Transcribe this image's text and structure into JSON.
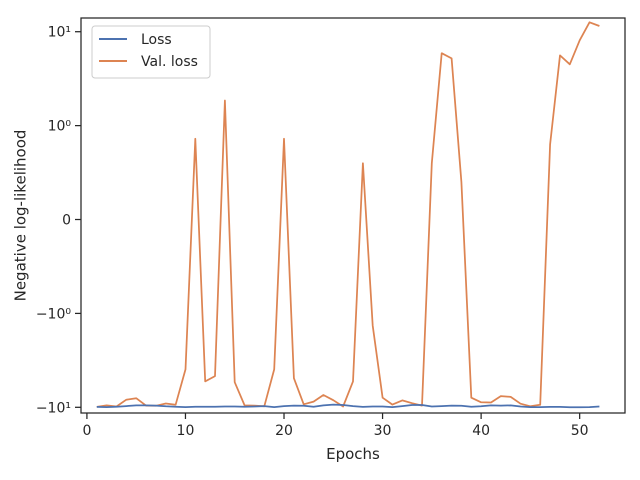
{
  "chart_data": {
    "type": "line",
    "title": "",
    "xlabel": "Epochs",
    "ylabel": "Negative log-likelihood",
    "yscale": "symlog",
    "grid": false,
    "legend_placement": "upper-left",
    "xlim": [
      -0.6,
      54.6
    ],
    "ylim": [
      -11.5,
      14.0
    ],
    "xticks": [
      0,
      10,
      20,
      30,
      40,
      50
    ],
    "xtick_labels": [
      "0",
      "10",
      "20",
      "30",
      "40",
      "50"
    ],
    "yticks": [
      -10,
      -1,
      0,
      1,
      10
    ],
    "ytick_labels": [
      "−10¹",
      "−10⁰",
      "0",
      "10⁰",
      "10¹"
    ],
    "x": [
      1,
      2,
      3,
      4,
      5,
      6,
      7,
      8,
      9,
      10,
      11,
      12,
      13,
      14,
      15,
      16,
      17,
      18,
      19,
      20,
      21,
      22,
      23,
      24,
      25,
      26,
      27,
      28,
      29,
      30,
      31,
      32,
      33,
      34,
      35,
      36,
      37,
      38,
      39,
      40,
      41,
      42,
      43,
      44,
      45,
      46,
      47,
      48,
      49,
      50,
      51,
      52
    ],
    "series": [
      {
        "name": "Loss",
        "color": "#4c72b0",
        "values": [
          -9.9,
          -9.95,
          -9.85,
          -9.7,
          -9.55,
          -9.55,
          -9.6,
          -9.75,
          -9.85,
          -9.95,
          -9.85,
          -9.85,
          -9.85,
          -9.8,
          -9.8,
          -9.85,
          -9.8,
          -9.7,
          -9.95,
          -9.7,
          -9.6,
          -9.65,
          -9.85,
          -9.55,
          -9.35,
          -9.45,
          -9.7,
          -9.9,
          -9.8,
          -9.8,
          -9.95,
          -9.7,
          -9.45,
          -9.45,
          -9.8,
          -9.7,
          -9.6,
          -9.65,
          -9.85,
          -9.75,
          -9.55,
          -9.6,
          -9.55,
          -9.8,
          -9.95,
          -9.95,
          -9.9,
          -9.9,
          -10.0,
          -10.0,
          -9.95,
          -9.8
        ]
      },
      {
        "name": "Val. loss",
        "color": "#dd8452",
        "values": [
          -9.9,
          -9.55,
          -9.8,
          -8.3,
          -8.0,
          -9.6,
          -9.65,
          -9.1,
          -9.4,
          -3.95,
          0.86,
          -5.3,
          -4.65,
          1.85,
          -5.4,
          -9.55,
          -9.6,
          -9.75,
          -3.95,
          0.86,
          -4.9,
          -9.3,
          -8.7,
          -7.4,
          -8.4,
          -9.8,
          -5.3,
          0.6,
          -1.35,
          -7.9,
          -9.35,
          -8.45,
          -9.05,
          -9.6,
          0.6,
          5.9,
          5.2,
          0.4,
          -7.9,
          -8.85,
          -8.9,
          -7.6,
          -7.75,
          -9.15,
          -9.75,
          -9.4,
          0.8,
          5.6,
          4.5,
          8.1,
          12.6,
          11.5
        ]
      }
    ]
  }
}
